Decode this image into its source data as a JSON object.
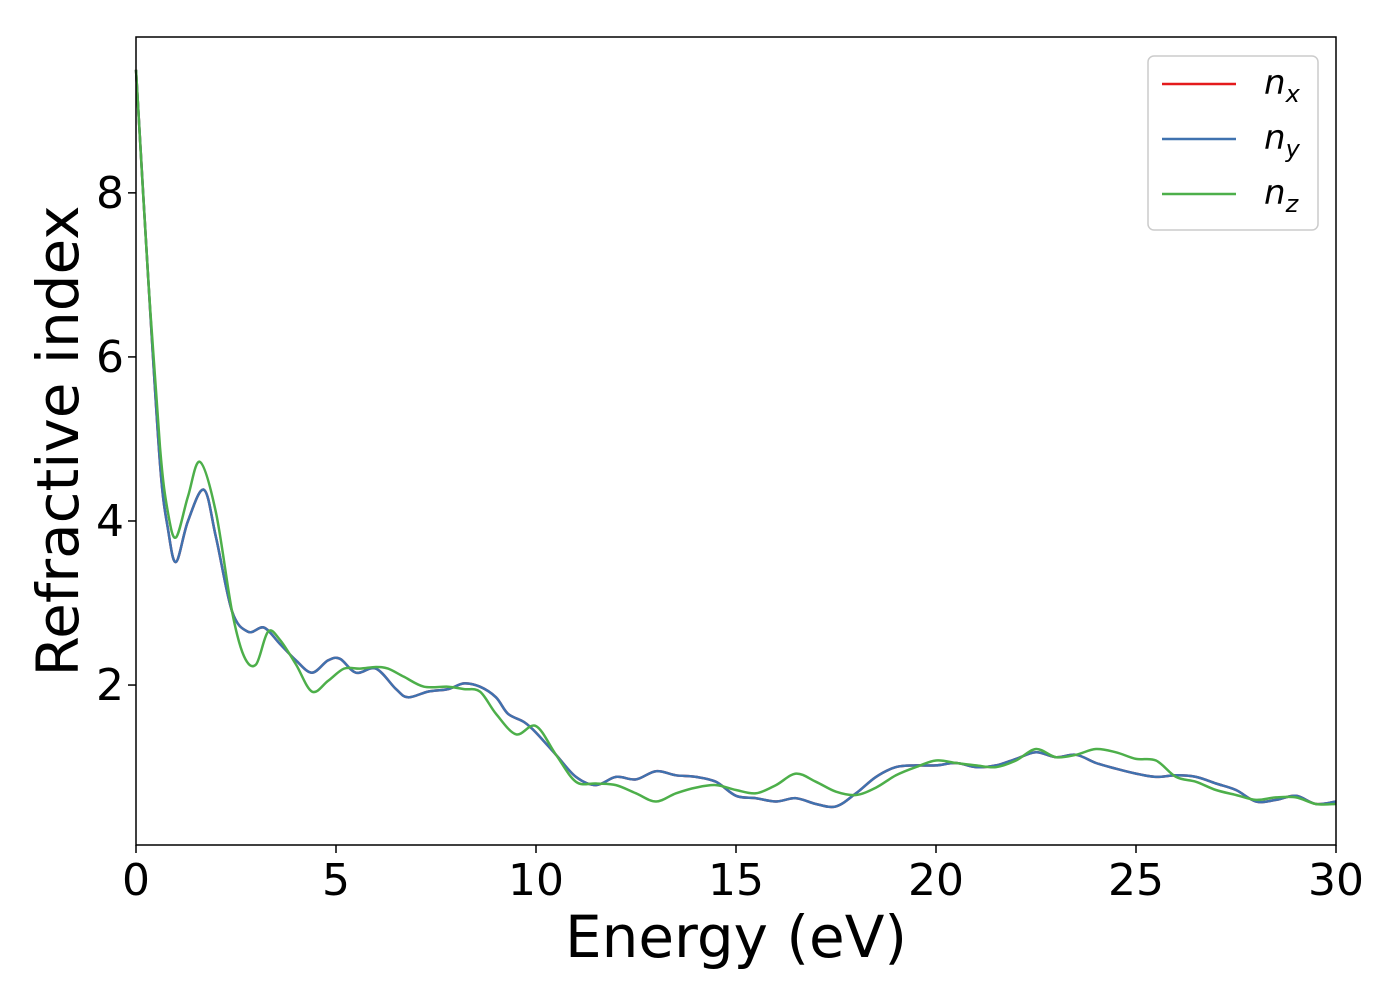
{
  "chart_data": {
    "type": "line",
    "xlabel": "Energy (eV)",
    "ylabel": "Refractive index",
    "xlim": [
      0,
      30
    ],
    "ylim": [
      0.05,
      9.9
    ],
    "x_ticks": [
      0,
      5,
      10,
      15,
      20,
      25,
      30
    ],
    "y_ticks": [
      2,
      4,
      6,
      8
    ],
    "grid": false,
    "legend_position": "top-right",
    "series": [
      {
        "name": "n",
        "subscript": "x",
        "color": "#e41a1c",
        "x": [
          0,
          0.3,
          0.6,
          0.8,
          1.0,
          1.3,
          1.7,
          2.0,
          2.4,
          2.8,
          3.2,
          3.6,
          4.0,
          4.4,
          4.8,
          5.1,
          5.5,
          6.0,
          6.5,
          6.8,
          7.3,
          7.8,
          8.2,
          8.6,
          9.0,
          9.3,
          9.7,
          10.0,
          10.5,
          11.0,
          11.5,
          12.0,
          12.5,
          13.0,
          13.5,
          14.0,
          14.5,
          15.0,
          15.5,
          16.0,
          16.5,
          17.0,
          17.5,
          18.0,
          18.5,
          19.0,
          19.5,
          20.0,
          20.5,
          21.0,
          21.5,
          22.0,
          22.5,
          23.0,
          23.5,
          24.0,
          24.5,
          25.0,
          25.5,
          26.0,
          26.5,
          27.0,
          27.5,
          28.0,
          28.5,
          29.0,
          29.5,
          30.0
        ],
        "values": [
          9.5,
          7.0,
          4.7,
          3.9,
          3.5,
          4.0,
          4.38,
          3.8,
          2.9,
          2.65,
          2.7,
          2.5,
          2.3,
          2.15,
          2.3,
          2.32,
          2.15,
          2.2,
          1.95,
          1.85,
          1.92,
          1.95,
          2.02,
          1.98,
          1.85,
          1.65,
          1.55,
          1.42,
          1.15,
          0.88,
          0.78,
          0.88,
          0.85,
          0.95,
          0.9,
          0.88,
          0.82,
          0.65,
          0.62,
          0.58,
          0.62,
          0.55,
          0.52,
          0.68,
          0.88,
          1.0,
          1.02,
          1.02,
          1.05,
          1.0,
          1.02,
          1.1,
          1.18,
          1.12,
          1.15,
          1.05,
          0.98,
          0.92,
          0.88,
          0.9,
          0.88,
          0.8,
          0.72,
          0.58,
          0.6,
          0.65,
          0.55,
          0.58
        ]
      },
      {
        "name": "n",
        "subscript": "y",
        "color": "#3f72af",
        "x": [
          0,
          0.3,
          0.6,
          0.8,
          1.0,
          1.3,
          1.7,
          2.0,
          2.4,
          2.8,
          3.2,
          3.6,
          4.0,
          4.4,
          4.8,
          5.1,
          5.5,
          6.0,
          6.5,
          6.8,
          7.3,
          7.8,
          8.2,
          8.6,
          9.0,
          9.3,
          9.7,
          10.0,
          10.5,
          11.0,
          11.5,
          12.0,
          12.5,
          13.0,
          13.5,
          14.0,
          14.5,
          15.0,
          15.5,
          16.0,
          16.5,
          17.0,
          17.5,
          18.0,
          18.5,
          19.0,
          19.5,
          20.0,
          20.5,
          21.0,
          21.5,
          22.0,
          22.5,
          23.0,
          23.5,
          24.0,
          24.5,
          25.0,
          25.5,
          26.0,
          26.5,
          27.0,
          27.5,
          28.0,
          28.5,
          29.0,
          29.5,
          30.0
        ],
        "values": [
          9.5,
          7.0,
          4.7,
          3.9,
          3.5,
          4.0,
          4.38,
          3.8,
          2.9,
          2.65,
          2.7,
          2.5,
          2.3,
          2.15,
          2.3,
          2.32,
          2.15,
          2.2,
          1.95,
          1.85,
          1.92,
          1.95,
          2.02,
          1.98,
          1.85,
          1.65,
          1.55,
          1.42,
          1.15,
          0.88,
          0.78,
          0.88,
          0.85,
          0.95,
          0.9,
          0.88,
          0.82,
          0.65,
          0.62,
          0.58,
          0.62,
          0.55,
          0.52,
          0.68,
          0.88,
          1.0,
          1.02,
          1.02,
          1.05,
          1.0,
          1.02,
          1.1,
          1.18,
          1.12,
          1.15,
          1.05,
          0.98,
          0.92,
          0.88,
          0.9,
          0.88,
          0.8,
          0.72,
          0.58,
          0.6,
          0.65,
          0.55,
          0.58
        ]
      },
      {
        "name": "n",
        "subscript": "z",
        "color": "#4daf4a",
        "x": [
          0,
          0.3,
          0.6,
          0.8,
          1.0,
          1.3,
          1.6,
          2.0,
          2.4,
          2.7,
          3.0,
          3.3,
          3.6,
          4.0,
          4.4,
          4.8,
          5.2,
          5.6,
          6.0,
          6.3,
          6.7,
          7.2,
          7.8,
          8.2,
          8.6,
          9.0,
          9.5,
          10.0,
          10.5,
          11.0,
          11.5,
          12.0,
          12.5,
          13.0,
          13.5,
          14.0,
          14.5,
          15.0,
          15.5,
          16.0,
          16.5,
          17.0,
          17.5,
          18.0,
          18.5,
          19.0,
          19.5,
          20.0,
          20.5,
          21.0,
          21.5,
          22.0,
          22.5,
          23.0,
          23.5,
          24.0,
          24.5,
          25.0,
          25.5,
          26.0,
          26.5,
          27.0,
          27.5,
          28.0,
          28.5,
          29.0,
          29.5,
          30.0
        ],
        "values": [
          9.5,
          7.0,
          4.9,
          4.1,
          3.8,
          4.3,
          4.72,
          4.1,
          2.9,
          2.35,
          2.25,
          2.65,
          2.55,
          2.25,
          1.92,
          2.05,
          2.2,
          2.2,
          2.22,
          2.2,
          2.1,
          1.98,
          1.98,
          1.95,
          1.92,
          1.65,
          1.4,
          1.5,
          1.15,
          0.82,
          0.8,
          0.78,
          0.68,
          0.58,
          0.68,
          0.75,
          0.78,
          0.72,
          0.68,
          0.78,
          0.92,
          0.82,
          0.7,
          0.66,
          0.75,
          0.9,
          1.0,
          1.08,
          1.05,
          1.02,
          1.0,
          1.08,
          1.22,
          1.12,
          1.15,
          1.22,
          1.18,
          1.1,
          1.08,
          0.88,
          0.82,
          0.72,
          0.66,
          0.6,
          0.63,
          0.63,
          0.55,
          0.55
        ]
      }
    ]
  }
}
